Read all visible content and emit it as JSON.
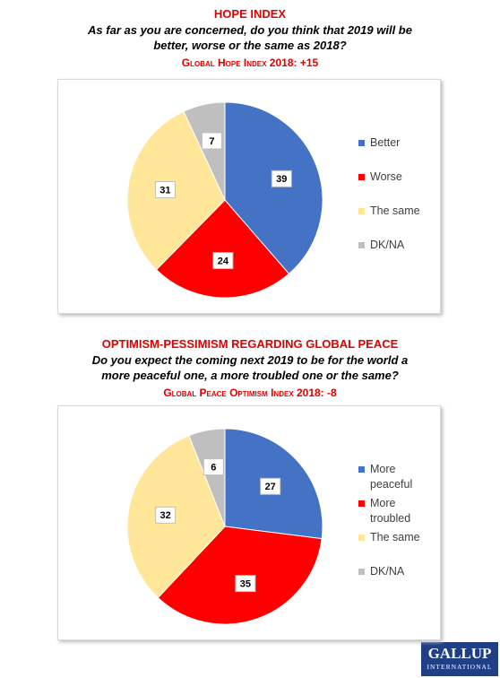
{
  "chart_data": [
    {
      "type": "pie",
      "title": "HOPE INDEX",
      "subtitle": "As far as you are concerned, do you think that 2019 will be better, worse or the same as 2018?",
      "annotation": "Global Hope Index 2018: +15",
      "categories": [
        "Better",
        "Worse",
        "The same",
        "DK/NA"
      ],
      "values": [
        39,
        24,
        31,
        7
      ],
      "colors": [
        "#4472c4",
        "#ff0000",
        "#ffe699",
        "#bfbfbf"
      ],
      "legend": "right"
    },
    {
      "type": "pie",
      "title": "OPTIMISM-PESSIMISM REGARDING GLOBAL PEACE",
      "subtitle": "Do you expect the coming next 2019 to be for the world a more peaceful one, a more troubled one or the same?",
      "annotation": "Global Peace Optimism Index 2018: -8",
      "categories": [
        "More peaceful",
        "More troubled",
        "The same",
        "DK/NA"
      ],
      "values": [
        27,
        35,
        32,
        6
      ],
      "colors": [
        "#4472c4",
        "#ff0000",
        "#ffe699",
        "#bfbfbf"
      ],
      "legend": "right"
    }
  ],
  "logo": {
    "name": "GALLUP",
    "sub": "INTERNATIONAL"
  }
}
